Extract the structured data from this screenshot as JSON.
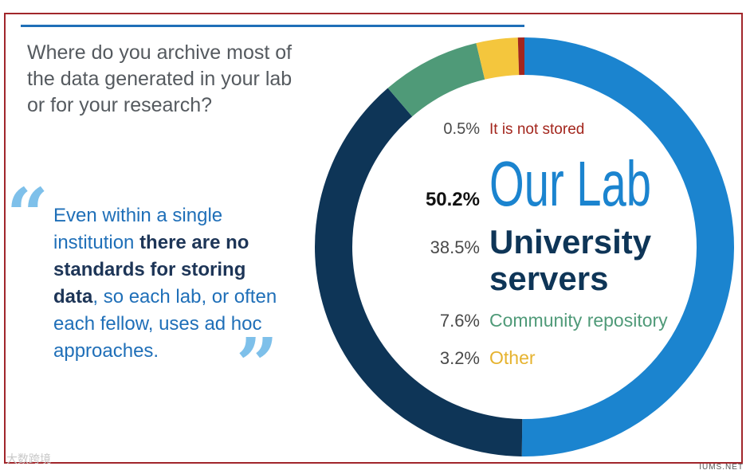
{
  "question": "Where do you archive most of the data generated in your lab or for your research?",
  "quote": {
    "part1": "Even within a single institution ",
    "bold1": "there are no standards for storing data",
    "part2": ", so each lab, or often each fellow, uses ad hoc approaches."
  },
  "chart_data": {
    "type": "pie",
    "subtype": "donut",
    "slices": [
      {
        "label": "Our Lab",
        "value": 50.2,
        "display": "50.2%",
        "color": "#1b84cf"
      },
      {
        "label": "University servers",
        "value": 38.5,
        "display": "38.5%",
        "color": "#0e3557"
      },
      {
        "label": "Community repository",
        "value": 7.6,
        "display": "7.6%",
        "color": "#4f9a78"
      },
      {
        "label": "Other",
        "value": 3.2,
        "display": "3.2%",
        "color": "#f4c63d"
      },
      {
        "label": "It is not stored",
        "value": 0.5,
        "display": "0.5%",
        "color": "#a3261d"
      }
    ]
  },
  "watermark": {
    "left": "大数跨境",
    "right": "IUMS.NET"
  }
}
